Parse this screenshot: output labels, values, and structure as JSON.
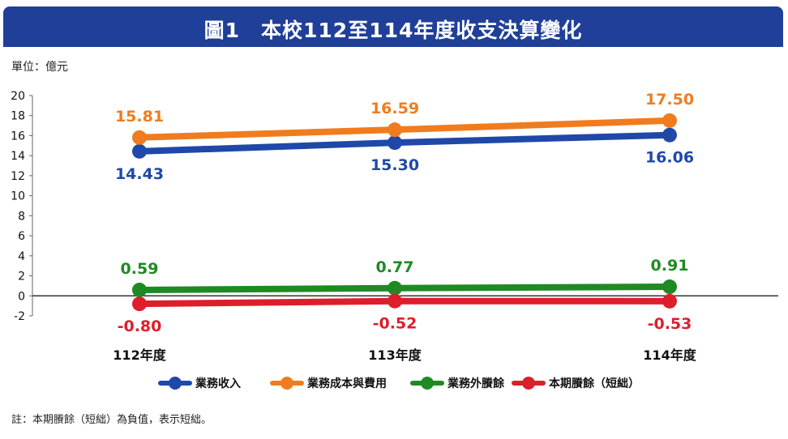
{
  "title": "圖1　本校112至114年度收支決算變化",
  "unit_label": "單位：億元",
  "footnote": "註：本期賸餘（短絀）為負值，表示短絀。",
  "colors": {
    "title_bg": "#1f3f99",
    "zero_line": "#333333"
  },
  "chart_data": {
    "type": "line",
    "categories": [
      "112年度",
      "113年度",
      "114年度"
    ],
    "y_ticks": [
      "20",
      "18",
      "16",
      "14",
      "12",
      "10",
      "8",
      "6",
      "4",
      "2",
      "0",
      "-2"
    ],
    "ylim": [
      -2,
      20
    ],
    "grid": false,
    "legend_position": "bottom",
    "series": [
      {
        "name": "業務收入",
        "color": "#1f48a8",
        "values": [
          14.43,
          15.3,
          16.06
        ],
        "labels": [
          "14.43",
          "15.30",
          "16.06"
        ],
        "label_pos": "below"
      },
      {
        "name": "業務成本與費用",
        "color": "#f07c1f",
        "values": [
          15.81,
          16.59,
          17.5
        ],
        "labels": [
          "15.81",
          "16.59",
          "17.50"
        ],
        "label_pos": "above"
      },
      {
        "name": "業務外賸餘",
        "color": "#1f8a23",
        "values": [
          0.59,
          0.77,
          0.91
        ],
        "labels": [
          "0.59",
          "0.77",
          "0.91"
        ],
        "label_pos": "above"
      },
      {
        "name": "本期賸餘（短絀）",
        "color": "#dc1f2b",
        "values": [
          -0.8,
          -0.52,
          -0.53
        ],
        "labels": [
          "-0.80",
          "-0.52",
          "-0.53"
        ],
        "label_pos": "below"
      }
    ]
  }
}
